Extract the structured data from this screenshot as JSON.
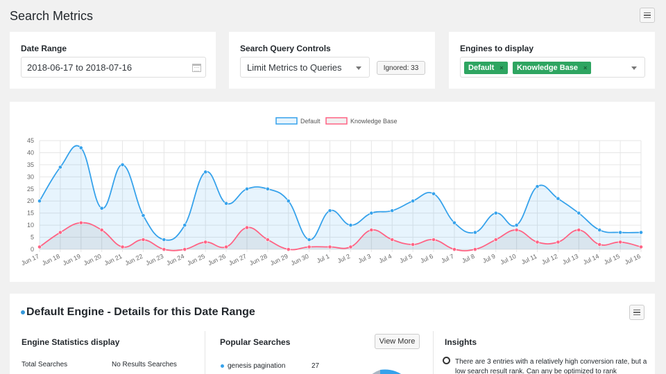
{
  "header": {
    "title": "Search Metrics"
  },
  "date_range": {
    "label": "Date Range",
    "value": "2018-06-17 to 2018-07-16"
  },
  "query_controls": {
    "label": "Search Query Controls",
    "select_value": "Limit Metrics to Queries",
    "ignored_label": "Ignored: 33"
  },
  "engines": {
    "label": "Engines to display",
    "tags": [
      "Default",
      "Knowledge Base"
    ],
    "remove_glyph": "×"
  },
  "chart_data": {
    "type": "line",
    "categories": [
      "Jun 17",
      "Jun 18",
      "Jun 19",
      "Jun 20",
      "Jun 21",
      "Jun 22",
      "Jun 23",
      "Jun 24",
      "Jun 25",
      "Jun 26",
      "Jun 27",
      "Jun 28",
      "Jun 29",
      "Jun 30",
      "Jul 1",
      "Jul 2",
      "Jul 3",
      "Jul 4",
      "Jul 5",
      "Jul 6",
      "Jul 7",
      "Jul 8",
      "Jul 9",
      "Jul 10",
      "Jul 11",
      "Jul 12",
      "Jul 13",
      "Jul 14",
      "Jul 15",
      "Jul 16"
    ],
    "series": [
      {
        "name": "Default",
        "color": "#36a2eb",
        "fill": "rgba(54,162,235,0.12)",
        "values": [
          20,
          34,
          42,
          17,
          35,
          14,
          4,
          10,
          32,
          19,
          25,
          25,
          20,
          4,
          16,
          10,
          15,
          16,
          20,
          23,
          11,
          7,
          15,
          10,
          26,
          21,
          15,
          8,
          7,
          7
        ]
      },
      {
        "name": "Knowledge Base",
        "color": "#ff6384",
        "fill": "rgba(0,0,0,0.06)",
        "values": [
          1,
          7,
          11,
          8,
          1,
          4,
          0,
          0,
          3,
          1,
          9,
          4,
          0,
          1,
          1,
          1,
          8,
          4,
          2,
          4,
          0,
          0,
          4,
          8,
          3,
          3,
          8,
          2,
          3,
          1
        ]
      }
    ],
    "yticks": [
      "0",
      "5",
      "10",
      "15",
      "20",
      "25",
      "30",
      "35",
      "40",
      "45"
    ],
    "ylim": [
      0,
      45
    ],
    "grid": true,
    "legend_position": "top"
  },
  "details": {
    "title": "Default Engine - Details for this Date Range",
    "stats_title": "Engine Statistics display",
    "stats_col1": "Total Searches",
    "stats_col2": "No Results Searches",
    "popular_title": "Popular Searches",
    "view_more": "View More",
    "popular_items": [
      {
        "term": "genesis pagination",
        "count": "27"
      }
    ],
    "insights_title": "Insights",
    "insight_text": "There are 3 entries with a relatively high conversion rate, but a low search result rank. Can any be optimized to rank"
  }
}
